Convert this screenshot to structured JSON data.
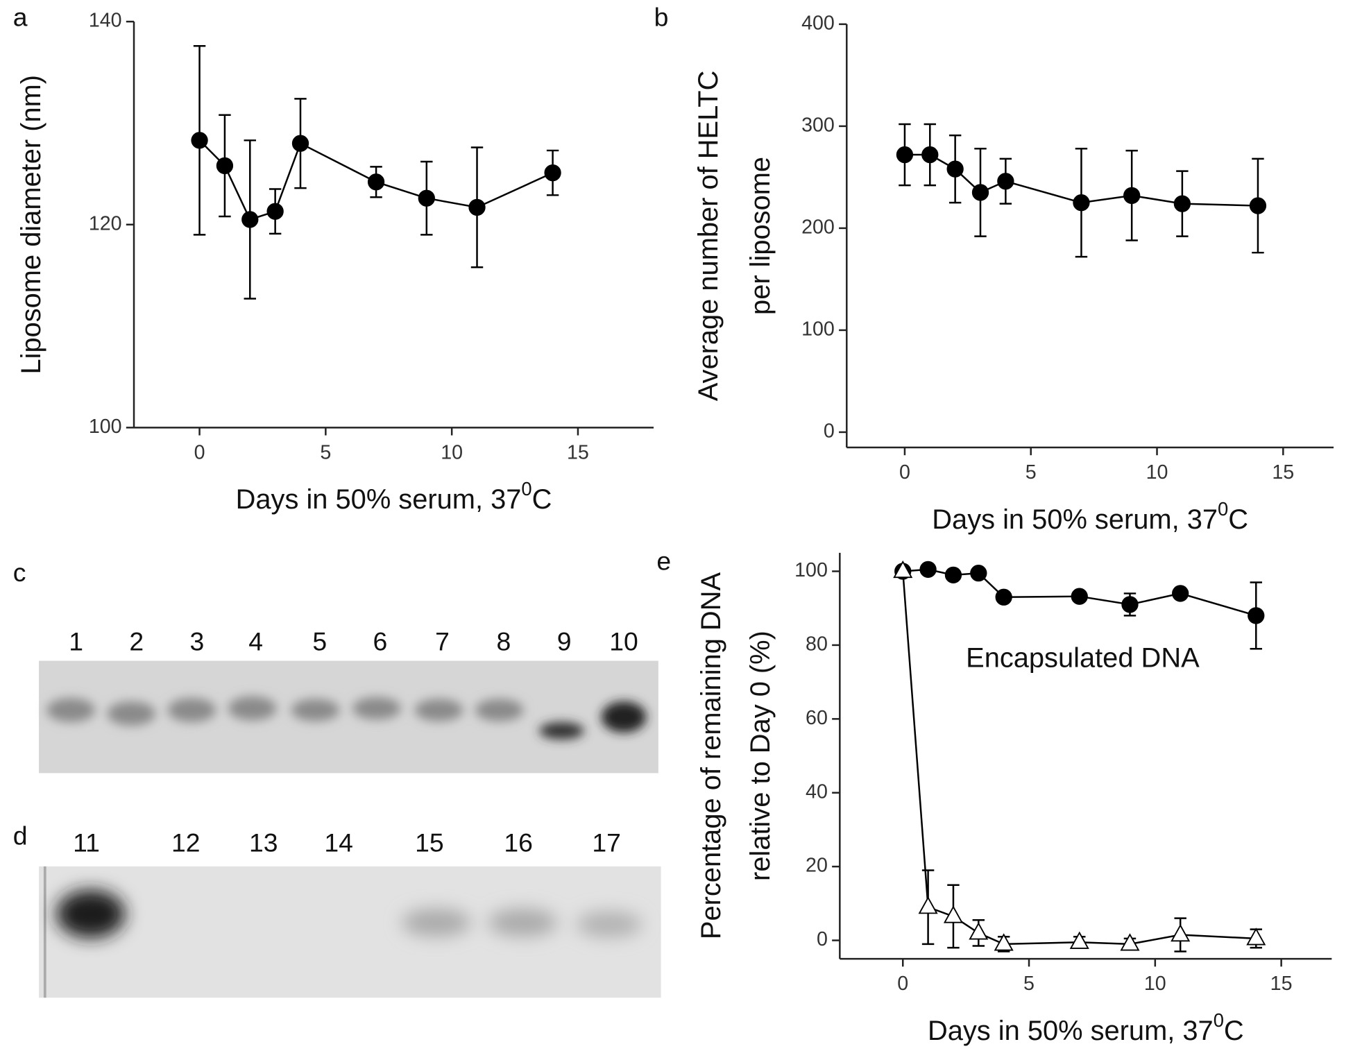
{
  "chart_data": [
    {
      "type": "line",
      "label": "a",
      "xlabel": [
        "Days in 50% serum, 37",
        "0",
        "C"
      ],
      "ylabel": [
        "Liposome diameter (nm)"
      ],
      "xlim": [
        -2.6,
        18
      ],
      "ylim": [
        100,
        140
      ],
      "xticks": [
        0,
        5,
        10,
        15
      ],
      "yticks": [
        100,
        120,
        140
      ],
      "series": [
        {
          "color": "#000000",
          "marker": "circle",
          "filled": true,
          "x": [
            0,
            1,
            2,
            3,
            4,
            7,
            9,
            11,
            14
          ],
          "values": [
            128.3,
            125.8,
            120.5,
            121.3,
            128,
            124.2,
            122.6,
            121.7,
            125.1
          ],
          "errors": [
            9.3,
            5,
            7.8,
            2.2,
            4.4,
            1.5,
            3.6,
            5.9,
            2.2
          ]
        }
      ]
    },
    {
      "type": "line",
      "label": "b",
      "xlabel": [
        "Days in 50% serum, 37",
        "0",
        "C"
      ],
      "ylabel": [
        "Average number of HELTC",
        "per liposome"
      ],
      "xlim": [
        -2.3,
        17
      ],
      "ylim": [
        -15,
        400
      ],
      "xticks": [
        0,
        5,
        10,
        15
      ],
      "yticks": [
        0,
        100,
        200,
        300,
        400
      ],
      "series": [
        {
          "color": "#000000",
          "marker": "circle",
          "filled": true,
          "x": [
            0,
            1,
            2,
            3,
            4,
            7,
            9,
            11,
            14
          ],
          "values": [
            272,
            272,
            258,
            235,
            246,
            225,
            232,
            224,
            222
          ],
          "errors": [
            30,
            30,
            33,
            43,
            22,
            53,
            44,
            32,
            46
          ]
        }
      ]
    },
    {
      "type": "line",
      "label": "e",
      "xlabel": [
        "Days in 50% serum, 37",
        "0",
        "C"
      ],
      "ylabel": [
        "Percentage of remaining DNA",
        "relative to Day 0 (%)"
      ],
      "xlim": [
        -2.5,
        17
      ],
      "ylim": [
        -5,
        105
      ],
      "xticks": [
        0,
        5,
        10,
        15
      ],
      "yticks": [
        0,
        20,
        40,
        60,
        80,
        100
      ],
      "annotations": [
        {
          "text": "Encapsulated DNA",
          "x": 2.5,
          "y": 76
        }
      ],
      "series": [
        {
          "color": "#000000",
          "marker": "circle",
          "filled": true,
          "x": [
            0,
            1,
            2,
            3,
            4,
            7,
            9,
            11,
            14
          ],
          "values": [
            100,
            100.5,
            99,
            99.5,
            93,
            93.2,
            91,
            94,
            88
          ],
          "errors": [
            0,
            0,
            0,
            0,
            0,
            0,
            3,
            0,
            9
          ]
        },
        {
          "color": "#000000",
          "marker": "triangle",
          "filled": false,
          "x": [
            0,
            1,
            2,
            3,
            4,
            7,
            9,
            11,
            14
          ],
          "values": [
            100,
            9,
            6.5,
            2,
            -1,
            -0.5,
            -1,
            1.5,
            0.5
          ],
          "errors": [
            0,
            10,
            8.5,
            3.5,
            2,
            1.5,
            1.5,
            4.5,
            2.5
          ]
        }
      ]
    }
  ],
  "gels": [
    {
      "label": "c",
      "lanes": [
        "1",
        "2",
        "3",
        "4",
        "5",
        "6",
        "7",
        "8",
        "9",
        "10"
      ]
    },
    {
      "label": "d",
      "lanes": [
        "11",
        "12",
        "13",
        "14",
        "15",
        "16",
        "17"
      ]
    }
  ]
}
